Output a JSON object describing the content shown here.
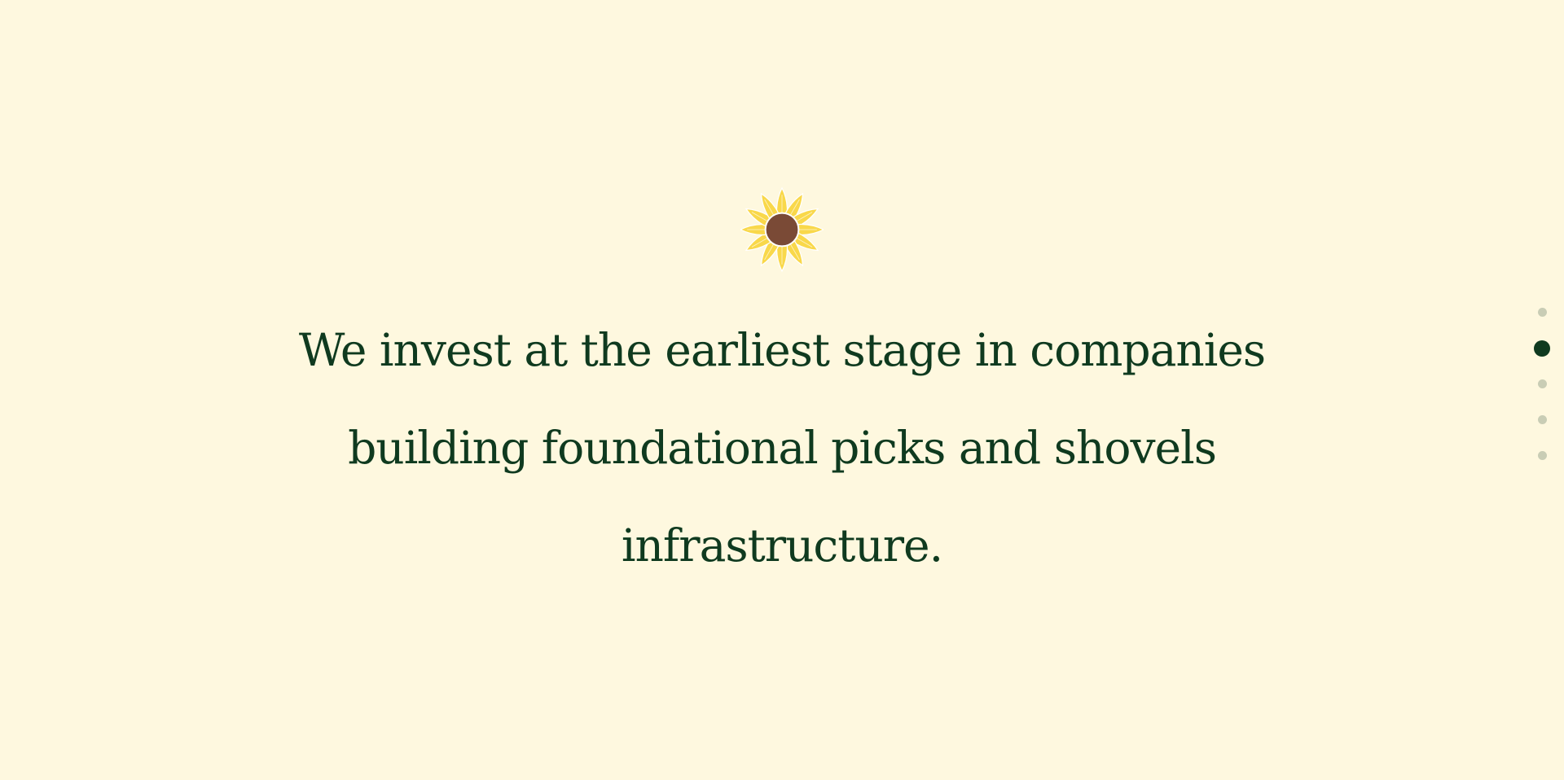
{
  "hero": {
    "logo_icon": "sunflower-icon",
    "headline": "We invest at the earliest stage in companies building foundational picks and shovels infrastructure."
  },
  "pager": {
    "total": 5,
    "active_index": 1
  },
  "colors": {
    "background": "#fef8df",
    "text": "#0f3a1f",
    "petal": "#f9d84a",
    "seed": "#7a4a36",
    "dot_inactive": "#c9cdb5",
    "dot_active": "#0f3a1f"
  }
}
